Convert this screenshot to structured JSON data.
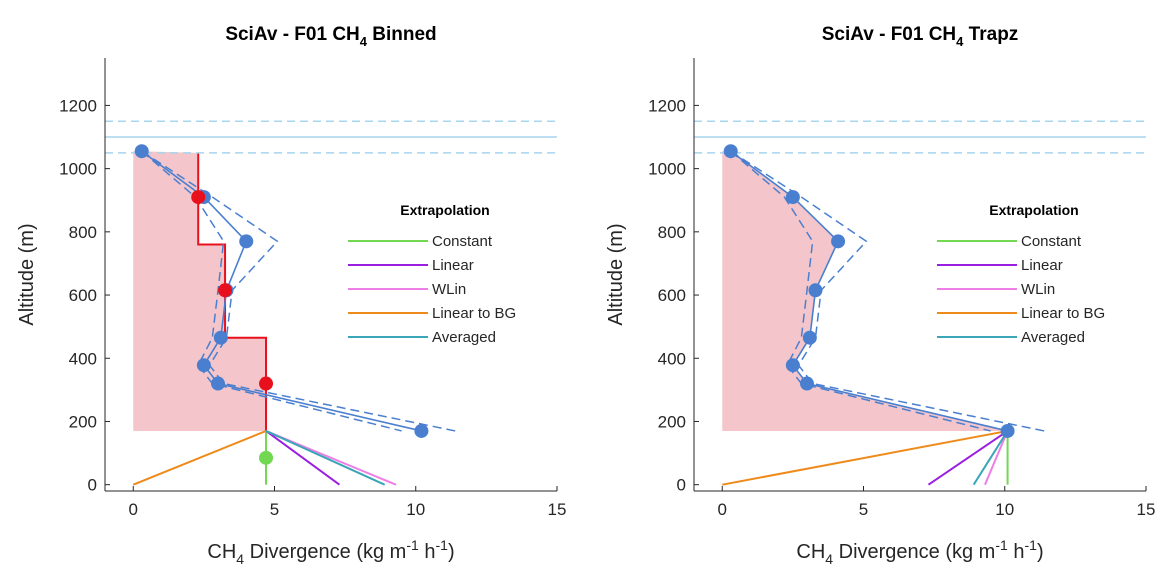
{
  "colors": {
    "profile": "#4a7fd0",
    "shade": "#f4c6cb",
    "binned": "#e8101c",
    "ceiling": "#a8d4ee",
    "constant": "#72d852",
    "linear": "#9b1fe0",
    "wlin": "#ee7fe6",
    "linear_to_bg": "#ee8a1a",
    "averaged": "#3aa6b8"
  },
  "chart_data": [
    {
      "type": "line",
      "title_main": "SciAv - F01 CH",
      "title_sub": "4",
      "title_tail": " Binned",
      "xlabel_main": "CH",
      "xlabel_sub": "4",
      "xlabel_tail": " Divergence (kg m",
      "xlabel_sup1": "-1",
      "xlabel_mid": " h",
      "xlabel_sup2": "-1",
      "xlabel_end": ")",
      "ylabel": "Altitude (m)",
      "xlim": [
        -1,
        15
      ],
      "ylim": [
        -20,
        1350
      ],
      "xticks": [
        0,
        5,
        10,
        15
      ],
      "yticks": [
        0,
        200,
        400,
        600,
        800,
        1000,
        1200
      ],
      "ceiling": {
        "center": 1100,
        "upper": 1150,
        "lower": 1050
      },
      "profile": {
        "x": [
          0.3,
          2.5,
          4.0,
          3.3,
          3.1,
          2.5,
          3.0,
          10.2
        ],
        "y": [
          1055,
          910,
          770,
          615,
          465,
          378,
          320,
          170
        ]
      },
      "profile_upper": {
        "x": [
          0.3,
          2.8,
          5.1,
          3.5,
          3.3,
          2.7,
          3.2,
          11.4
        ],
        "y": [
          1055,
          910,
          770,
          615,
          465,
          378,
          320,
          170
        ]
      },
      "profile_lower": {
        "x": [
          0.3,
          2.2,
          3.2,
          3.0,
          2.8,
          2.3,
          2.8,
          9.5
        ],
        "y": [
          1055,
          910,
          770,
          615,
          465,
          378,
          320,
          170
        ]
      },
      "binned": [
        {
          "x": 2.3,
          "y_low": 760,
          "y_high": 1050,
          "point_y": 910
        },
        {
          "x": 3.25,
          "y_low": 465,
          "y_high": 760,
          "point_y": 615
        },
        {
          "x": 4.7,
          "y_low": 170,
          "y_high": 465,
          "point_y": 320
        }
      ],
      "shade_bottom": 170,
      "extrapolation": [
        {
          "name": "Constant",
          "color_key": "constant",
          "x0": 4.7,
          "x1": 4.7
        },
        {
          "name": "Linear",
          "color_key": "linear",
          "x0": 4.7,
          "x1": 7.3
        },
        {
          "name": "WLin",
          "color_key": "wlin",
          "x0": 4.7,
          "x1": 9.3
        },
        {
          "name": "Linear to BG",
          "color_key": "linear_to_bg",
          "x0": 4.7,
          "x1": 0.0
        },
        {
          "name": "Averaged",
          "color_key": "averaged",
          "x0": 4.7,
          "x1": 8.9
        }
      ],
      "extrap_top": 170,
      "constant_marker": {
        "x": 4.7,
        "y": 85
      },
      "legend_title": "Extrapolation"
    },
    {
      "type": "line",
      "title_main": "SciAv - F01 CH",
      "title_sub": "4",
      "title_tail": " Trapz",
      "xlabel_main": "CH",
      "xlabel_sub": "4",
      "xlabel_tail": " Divergence (kg m",
      "xlabel_sup1": "-1",
      "xlabel_mid": " h",
      "xlabel_sup2": "-1",
      "xlabel_end": ")",
      "ylabel": "Altitude (m)",
      "xlim": [
        -1,
        15
      ],
      "ylim": [
        -20,
        1350
      ],
      "xticks": [
        0,
        5,
        10,
        15
      ],
      "yticks": [
        0,
        200,
        400,
        600,
        800,
        1000,
        1200
      ],
      "ceiling": {
        "center": 1100,
        "upper": 1150,
        "lower": 1050
      },
      "profile": {
        "x": [
          0.3,
          2.5,
          4.1,
          3.3,
          3.1,
          2.5,
          3.0,
          10.1
        ],
        "y": [
          1055,
          910,
          770,
          615,
          465,
          378,
          320,
          170
        ]
      },
      "profile_upper": {
        "x": [
          0.3,
          2.8,
          5.1,
          3.5,
          3.3,
          2.7,
          3.2,
          11.4
        ],
        "y": [
          1055,
          910,
          770,
          615,
          465,
          378,
          320,
          170
        ]
      },
      "profile_lower": {
        "x": [
          0.3,
          2.2,
          3.2,
          3.0,
          2.8,
          2.3,
          2.8,
          9.5
        ],
        "y": [
          1055,
          910,
          770,
          615,
          465,
          378,
          320,
          170
        ]
      },
      "binned": [],
      "shade_bottom": 170,
      "extrapolation": [
        {
          "name": "Constant",
          "color_key": "constant",
          "x0": 10.1,
          "x1": 10.1
        },
        {
          "name": "Linear",
          "color_key": "linear",
          "x0": 10.1,
          "x1": 7.3
        },
        {
          "name": "WLin",
          "color_key": "wlin",
          "x0": 10.1,
          "x1": 9.3
        },
        {
          "name": "Linear to BG",
          "color_key": "linear_to_bg",
          "x0": 10.1,
          "x1": 0.0
        },
        {
          "name": "Averaged",
          "color_key": "averaged",
          "x0": 10.1,
          "x1": 8.9
        }
      ],
      "extrap_top": 170,
      "constant_marker": null,
      "legend_title": "Extrapolation"
    }
  ]
}
